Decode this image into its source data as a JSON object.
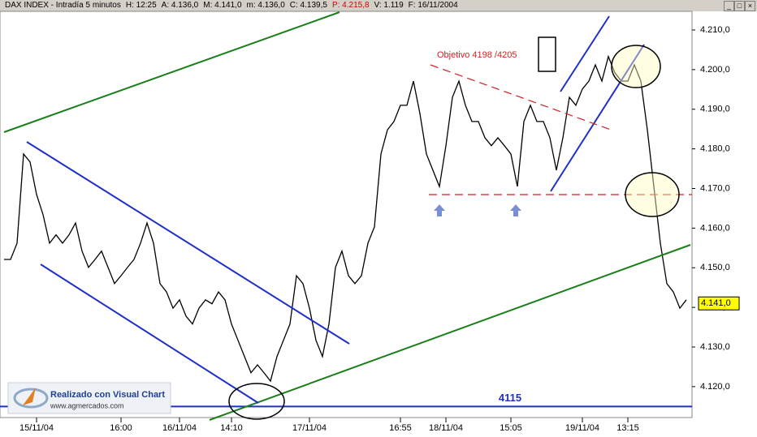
{
  "chart_data": {
    "type": "line",
    "header": [
      "DAX INDEX - Intradía 5 minutos",
      "H: 12:25",
      "A: 4.136,0",
      "M: 4.141,0",
      "m: 4.136,0",
      "C: 4.139,5",
      "P: 4.215,8",
      "V: 1.119",
      "F: 16/11/2004"
    ],
    "categories": [
      null,
      null,
      null,
      null,
      null,
      "15/11/04",
      null,
      null,
      null,
      null,
      null,
      null,
      null,
      null,
      null,
      null,
      null,
      null,
      "16:00",
      null,
      null,
      null,
      null,
      null,
      null,
      null,
      null,
      "16/11/04",
      null,
      null,
      null,
      null,
      null,
      null,
      null,
      "14:10",
      null,
      null,
      null,
      null,
      null,
      null,
      null,
      null,
      null,
      null,
      null,
      "17/11/04",
      null,
      null,
      null,
      null,
      null,
      null,
      null,
      null,
      null,
      null,
      null,
      null,
      null,
      "16:55",
      null,
      null,
      null,
      null,
      null,
      null,
      "18/11/04",
      null,
      null,
      null,
      null,
      null,
      null,
      null,
      null,
      null,
      "15:05",
      null,
      null,
      null,
      null,
      null,
      null,
      null,
      null,
      null,
      null,
      "19/11/04",
      null,
      null,
      null,
      null,
      null,
      null,
      "13:15",
      null,
      null,
      null,
      null,
      null,
      null,
      null,
      null,
      null
    ],
    "series": [
      {
        "name": "DAX INDEX",
        "color": "#000000",
        "values": [
          4152.1,
          4152.1,
          4156.2,
          4178.7,
          4176.7,
          4168.5,
          4163.4,
          4156.2,
          4158.3,
          4156.2,
          4158.3,
          4161.3,
          4154.2,
          4150.1,
          4152.1,
          4154.2,
          4150.1,
          4146.0,
          4148.0,
          4150.1,
          4152.1,
          4156.2,
          4161.3,
          4156.2,
          4146.0,
          4143.9,
          4139.8,
          4141.9,
          4137.8,
          4135.8,
          4139.8,
          4141.9,
          4140.9,
          4143.9,
          4141.9,
          4135.8,
          4131.7,
          4127.6,
          4123.5,
          4125.5,
          4123.5,
          4121.4,
          4127.6,
          4131.7,
          4135.8,
          4148.0,
          4146.0,
          4139.8,
          4131.7,
          4127.6,
          4135.8,
          4150.1,
          4154.2,
          4148.0,
          4146.0,
          4148.0,
          4156.2,
          4160.3,
          4178.7,
          4184.8,
          4186.9,
          4191.0,
          4191.0,
          4197.1,
          4188.9,
          4178.7,
          4174.6,
          4170.5,
          4180.8,
          4193.0,
          4197.1,
          4191.0,
          4186.9,
          4186.9,
          4182.8,
          4180.8,
          4182.8,
          4180.8,
          4178.7,
          4170.5,
          4186.9,
          4191.0,
          4186.9,
          4186.9,
          4182.8,
          4174.6,
          4182.8,
          4193.0,
          4191.0,
          4195.1,
          4197.1,
          4201.2,
          4197.1,
          4203.3,
          4199.2,
          4197.1,
          4197.1,
          4201.2,
          4197.1,
          4184.8,
          4170.5,
          4156.2,
          4146.0,
          4143.9,
          4139.8,
          4141.9
        ]
      }
    ],
    "ylim": [
      4112.2,
      4214.7
    ],
    "yticks": [
      {
        "value": 4120,
        "label": "4.120,0"
      },
      {
        "value": 4130,
        "label": "4.130,0"
      },
      {
        "value": 4140,
        "label": "4.140,0"
      },
      {
        "value": 4150,
        "label": "4.150,0"
      },
      {
        "value": 4160,
        "label": "4.160,0"
      },
      {
        "value": 4170,
        "label": "4.170,0"
      },
      {
        "value": 4180,
        "label": "4.180,0"
      },
      {
        "value": 4190,
        "label": "4.190,0"
      },
      {
        "value": 4200,
        "label": "4.200,0"
      },
      {
        "value": 4210,
        "label": "4.210,0"
      }
    ],
    "target_note": "Objetivo 4198 /4205",
    "support_level": {
      "value": 4115,
      "label": "4115"
    },
    "last_price": {
      "value": 4141,
      "label": "4.141,0"
    },
    "logo": {
      "title": "Realizado con Visual Chart",
      "url": "www.agmercados.com"
    }
  }
}
